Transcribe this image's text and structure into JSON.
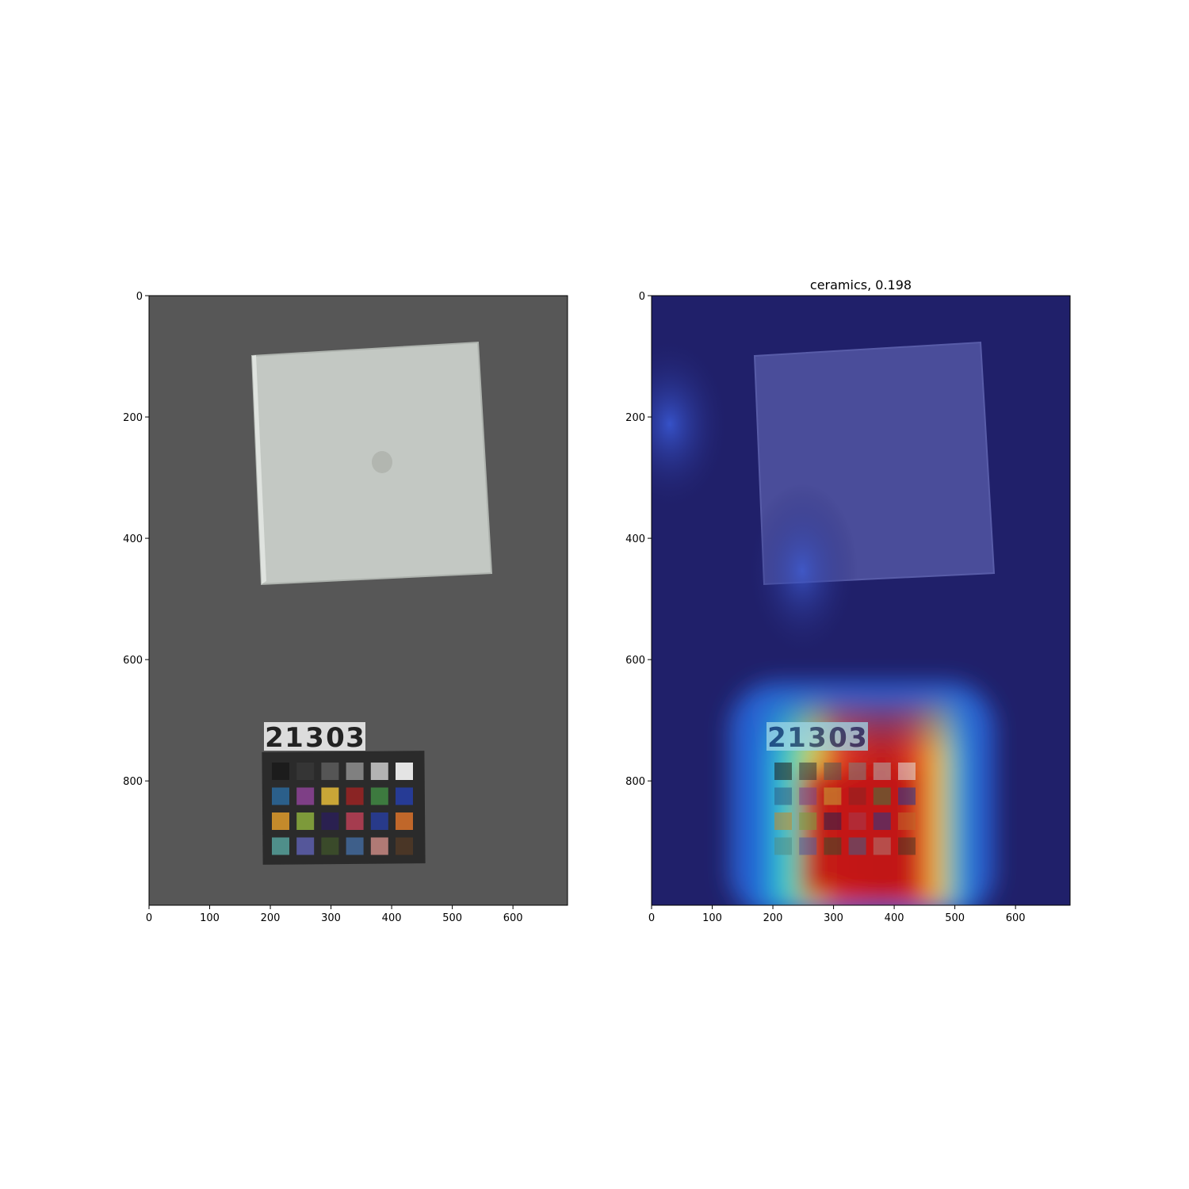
{
  "panels": [
    {
      "id": "original",
      "title": "",
      "x_ticks": [
        "0",
        "100",
        "200",
        "300",
        "400",
        "500",
        "600"
      ],
      "y_ticks": [
        "0",
        "200",
        "400",
        "600",
        "800"
      ],
      "image_content": "handkerchief-with-color-checker"
    },
    {
      "id": "heatmap",
      "title": "ceramics, 0.198",
      "x_ticks": [
        "0",
        "100",
        "200",
        "300",
        "400",
        "500",
        "600"
      ],
      "y_ticks": [
        "0",
        "200",
        "400",
        "600",
        "800"
      ],
      "image_content": "handkerchief-with-activation-overlay"
    }
  ],
  "object_tag": {
    "digits": [
      "2",
      "1",
      "3",
      "0",
      "3"
    ]
  },
  "colors": {
    "background": "#595959",
    "fabric": "#c3c8c3",
    "checker_frame": "#2b2b2b",
    "heatmap_base": "#20206a"
  },
  "color_checker": [
    [
      "#1c1c1c",
      "#353535",
      "#555555",
      "#808080",
      "#b3b3b3",
      "#e4e4e4"
    ],
    [
      "#2b5f8a",
      "#7e3f86",
      "#c9a637",
      "#8a2424",
      "#3d7a3f",
      "#263b95"
    ],
    [
      "#c48a2b",
      "#7d9a3a",
      "#2a2050",
      "#a53c4f",
      "#283a8a",
      "#c0672a"
    ],
    [
      "#4f8f8a",
      "#55579a",
      "#3a4a2a",
      "#3e5f8a",
      "#b07a75",
      "#4a3626"
    ]
  ]
}
